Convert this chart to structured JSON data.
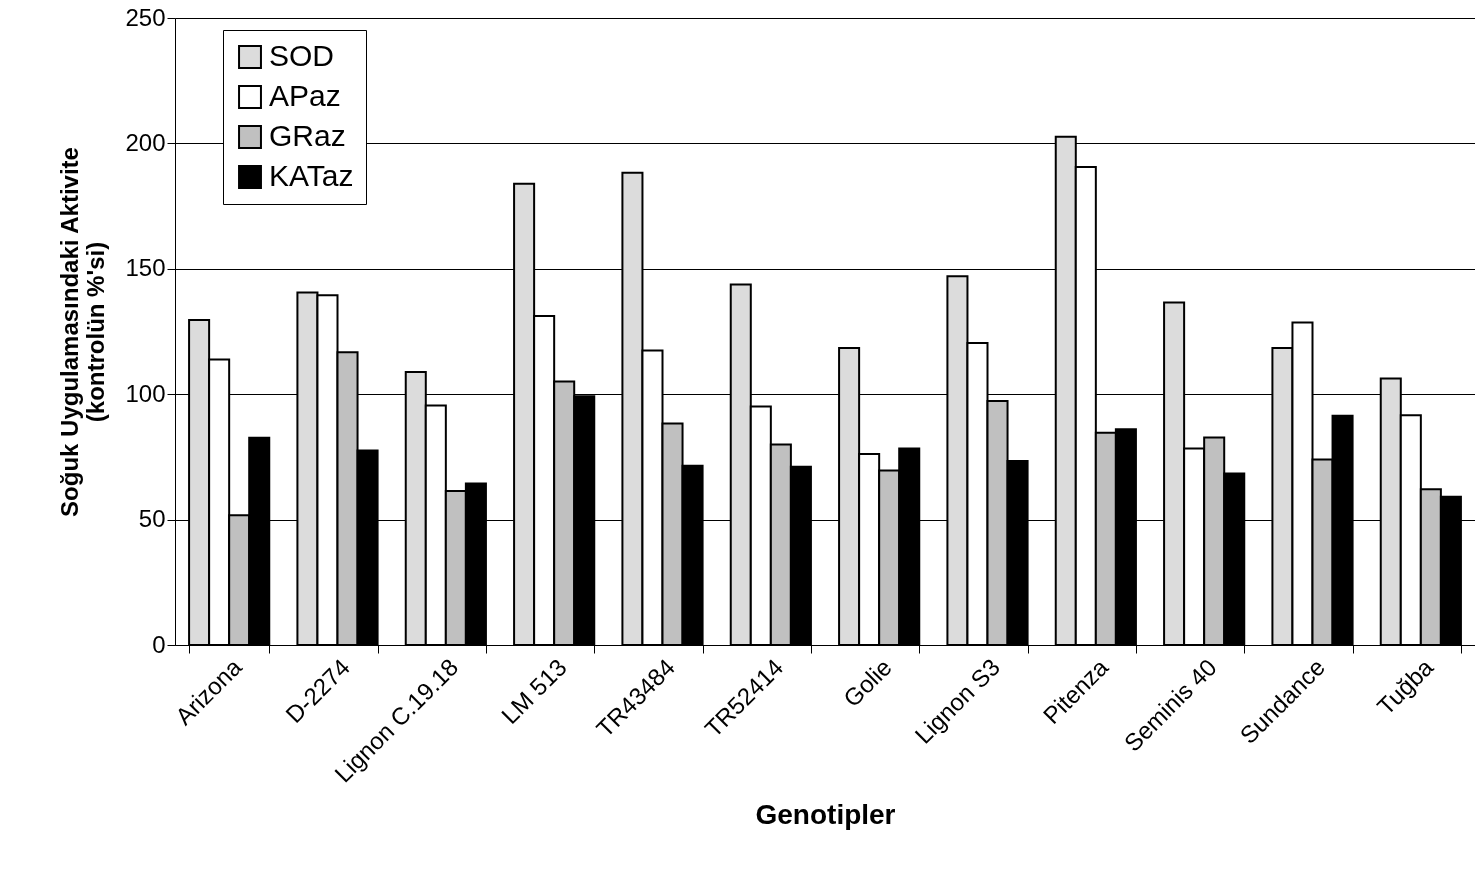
{
  "chart_data": {
    "type": "bar",
    "xlabel": "Genotipler",
    "ylabel": "Soğuk Uygulamasındaki Aktivite\n(kontrolün %'si)",
    "categories": [
      "Arizona",
      "D-2274",
      "Lignon C.19.18",
      "LM 513",
      "TR43484",
      "TR52414",
      "Golie",
      "Lignon S3",
      "Pitenza",
      "Seminis 40",
      "Sundance",
      "Tuğba"
    ],
    "series": [
      {
        "name": "SOD",
        "color": "#dcdcdc",
        "values": [
          129.6,
          140.6,
          108.9,
          183.9,
          188.3,
          143.7,
          118.4,
          147.0,
          202.7,
          136.6,
          118.4,
          106.3
        ]
      },
      {
        "name": "APaz",
        "color": "#ffffff",
        "values": [
          113.8,
          139.5,
          95.5,
          131.2,
          117.4,
          95.1,
          76.2,
          120.4,
          190.6,
          78.3,
          128.6,
          91.6
        ]
      },
      {
        "name": "GRaz",
        "color": "#c0c0c0",
        "values": [
          51.7,
          116.7,
          61.4,
          105.1,
          88.3,
          79.9,
          69.6,
          97.3,
          84.6,
          82.7,
          74.0,
          62.1
        ]
      },
      {
        "name": "KATaz",
        "color": "#000000",
        "values": [
          82.6,
          77.6,
          64.4,
          99.2,
          71.5,
          71.1,
          78.3,
          73.4,
          86.0,
          68.4,
          91.4,
          59.1
        ]
      }
    ],
    "ylim": [
      0,
      250
    ],
    "yticks": [
      0,
      50,
      100,
      150,
      200,
      250
    ],
    "grid": "y",
    "legend": "top left"
  }
}
